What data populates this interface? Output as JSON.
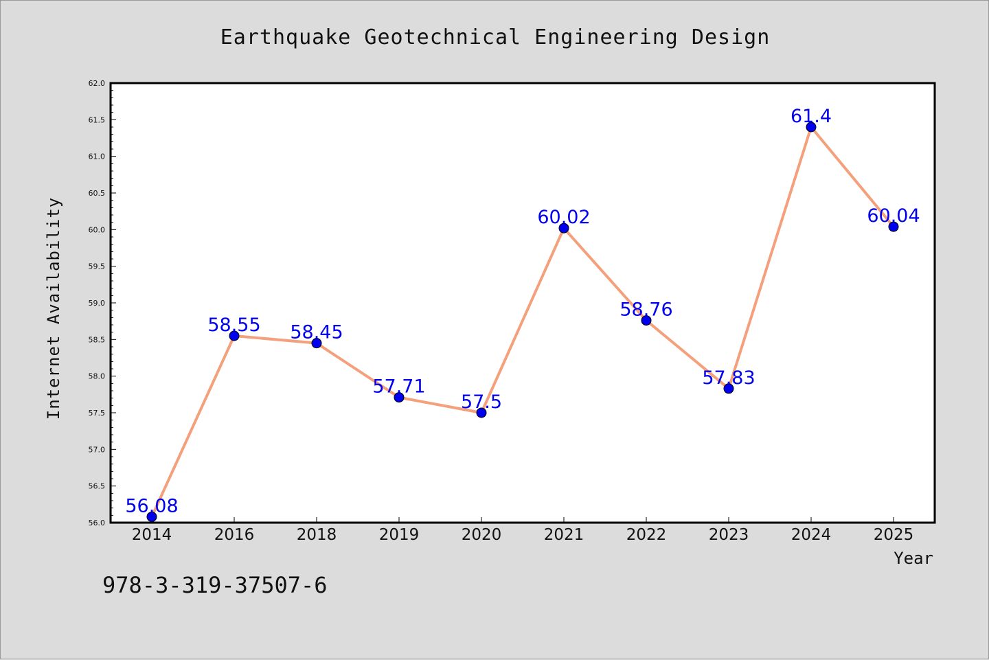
{
  "isbn_text": "978-3-319-37507-6",
  "chart_data": {
    "type": "line",
    "title": "Earthquake Geotechnical Engineering Design",
    "xlabel": "Year",
    "ylabel": "Internet Availability",
    "categories": [
      "2014",
      "2016",
      "2018",
      "2019",
      "2020",
      "2021",
      "2022",
      "2023",
      "2024",
      "2025"
    ],
    "series": [
      {
        "values": [
          56.08,
          58.55,
          58.45,
          57.71,
          57.5,
          60.02,
          58.76,
          57.83,
          61.4,
          60.04
        ]
      }
    ],
    "data_labels": [
      "56.08",
      "58.55",
      "58.45",
      "57.71",
      "57.5",
      "60.02",
      "58.76",
      "57.83",
      "61.4",
      "60.04"
    ],
    "ylim": [
      56.0,
      62.0
    ],
    "yticks": [
      "56.0",
      "56.5",
      "57.0",
      "57.5",
      "58.0",
      "58.5",
      "59.0",
      "59.5",
      "60.0",
      "60.5",
      "61.0",
      "61.5",
      "62.0"
    ],
    "grid": false,
    "legend": "none",
    "colors": {
      "line": "#f4a07c",
      "marker": "#0000ee",
      "label": "#0000ee",
      "plot_background": "#ffffff",
      "page_background": "#dcdcdc"
    }
  }
}
